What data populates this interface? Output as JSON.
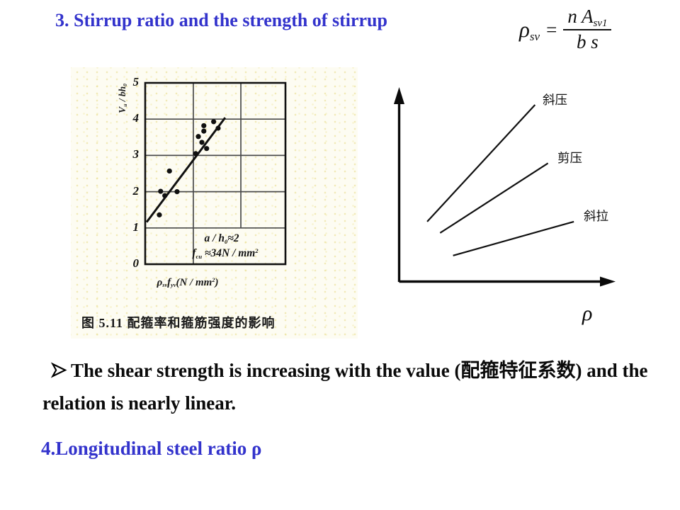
{
  "slide": {
    "title": "3. Stirrup ratio and the strength of stirrup",
    "bullet_text": "The shear strength is increasing with the value (配箍特征系数) and the relation is nearly linear.",
    "section4_heading": "4.Longitudinal steel ratio ρ"
  },
  "colors": {
    "heading_blue": "#3333cc",
    "body_text": "#0a0a0a",
    "line_black": "#101010",
    "scan_background": "#fdfcf2"
  },
  "formula": {
    "lhs_main": "ρ",
    "lhs_sub": "sv",
    "equals": "=",
    "numerator_main": "n A",
    "numerator_sub": "sv1",
    "denominator": "b s"
  },
  "scan_figure": {
    "ylabel_v": "V",
    "ylabel_v_sub": "u",
    "ylabel_rest": " / bh",
    "ylabel_rest_sub": "0",
    "yticks": [
      "5",
      "4",
      "3",
      "2",
      "1",
      "0"
    ],
    "annotation1_main": "a / h",
    "annotation1_sub": "0",
    "annotation1_rest": "≈2",
    "annotation2_main": "f",
    "annotation2_sub": "cu",
    "annotation2_rest": " ≈34N / mm",
    "annotation2_sup": "2",
    "xlabel_rho": "ρ",
    "xlabel_rho_sub": "sv",
    "xlabel_f": "f",
    "xlabel_f_sub": "yv",
    "xlabel_units": "(N / mm",
    "xlabel_units_sup": "2",
    "xlabel_units_close": ")",
    "caption": "图 5.11  配箍率和箍筋强度的影响"
  },
  "schematic": {
    "label_line1": "斜压",
    "label_line2": "剪压",
    "label_line3": "斜拉",
    "xaxis_label": "ρ"
  },
  "chart_data": [
    {
      "type": "scatter",
      "title": "图 5.11 配箍率和箍筋强度的影响",
      "xlabel": "ρsv·fyv (N/mm²)",
      "ylabel": "Vu/bh0",
      "xlim": [
        0,
        1
      ],
      "ylim": [
        0,
        5
      ],
      "yticks": [
        0,
        1,
        2,
        3,
        4,
        5
      ],
      "grid": true,
      "hgrid_y": [
        1,
        2,
        3,
        4
      ],
      "vgrid_x": [
        0.343,
        0.682
      ],
      "vgrid2_ymin": 1,
      "points": [
        [
          0.101,
          1.36
        ],
        [
          0.11,
          2.01
        ],
        [
          0.14,
          1.89
        ],
        [
          0.173,
          2.57
        ],
        [
          0.227,
          2.0
        ],
        [
          0.36,
          3.05
        ],
        [
          0.379,
          3.52
        ],
        [
          0.404,
          3.36
        ],
        [
          0.418,
          3.82
        ],
        [
          0.418,
          3.67
        ],
        [
          0.438,
          3.19
        ],
        [
          0.488,
          3.93
        ],
        [
          0.52,
          3.75
        ]
      ],
      "trend_line": {
        "from": [
          0.01,
          1.16
        ],
        "to": [
          0.57,
          4.04
        ]
      },
      "annotations": [
        "a / h0 ≈ 2",
        "fcu ≈ 34 N/mm²"
      ]
    },
    {
      "type": "line",
      "xlabel": "ρ",
      "ylabel": "",
      "series": [
        {
          "name": "斜压",
          "from": [
            0.13,
            0.32
          ],
          "to": [
            0.63,
            0.94
          ]
        },
        {
          "name": "剪压",
          "from": [
            0.19,
            0.26
          ],
          "to": [
            0.69,
            0.63
          ]
        },
        {
          "name": "斜拉",
          "from": [
            0.25,
            0.14
          ],
          "to": [
            0.81,
            0.32
          ]
        }
      ]
    }
  ]
}
